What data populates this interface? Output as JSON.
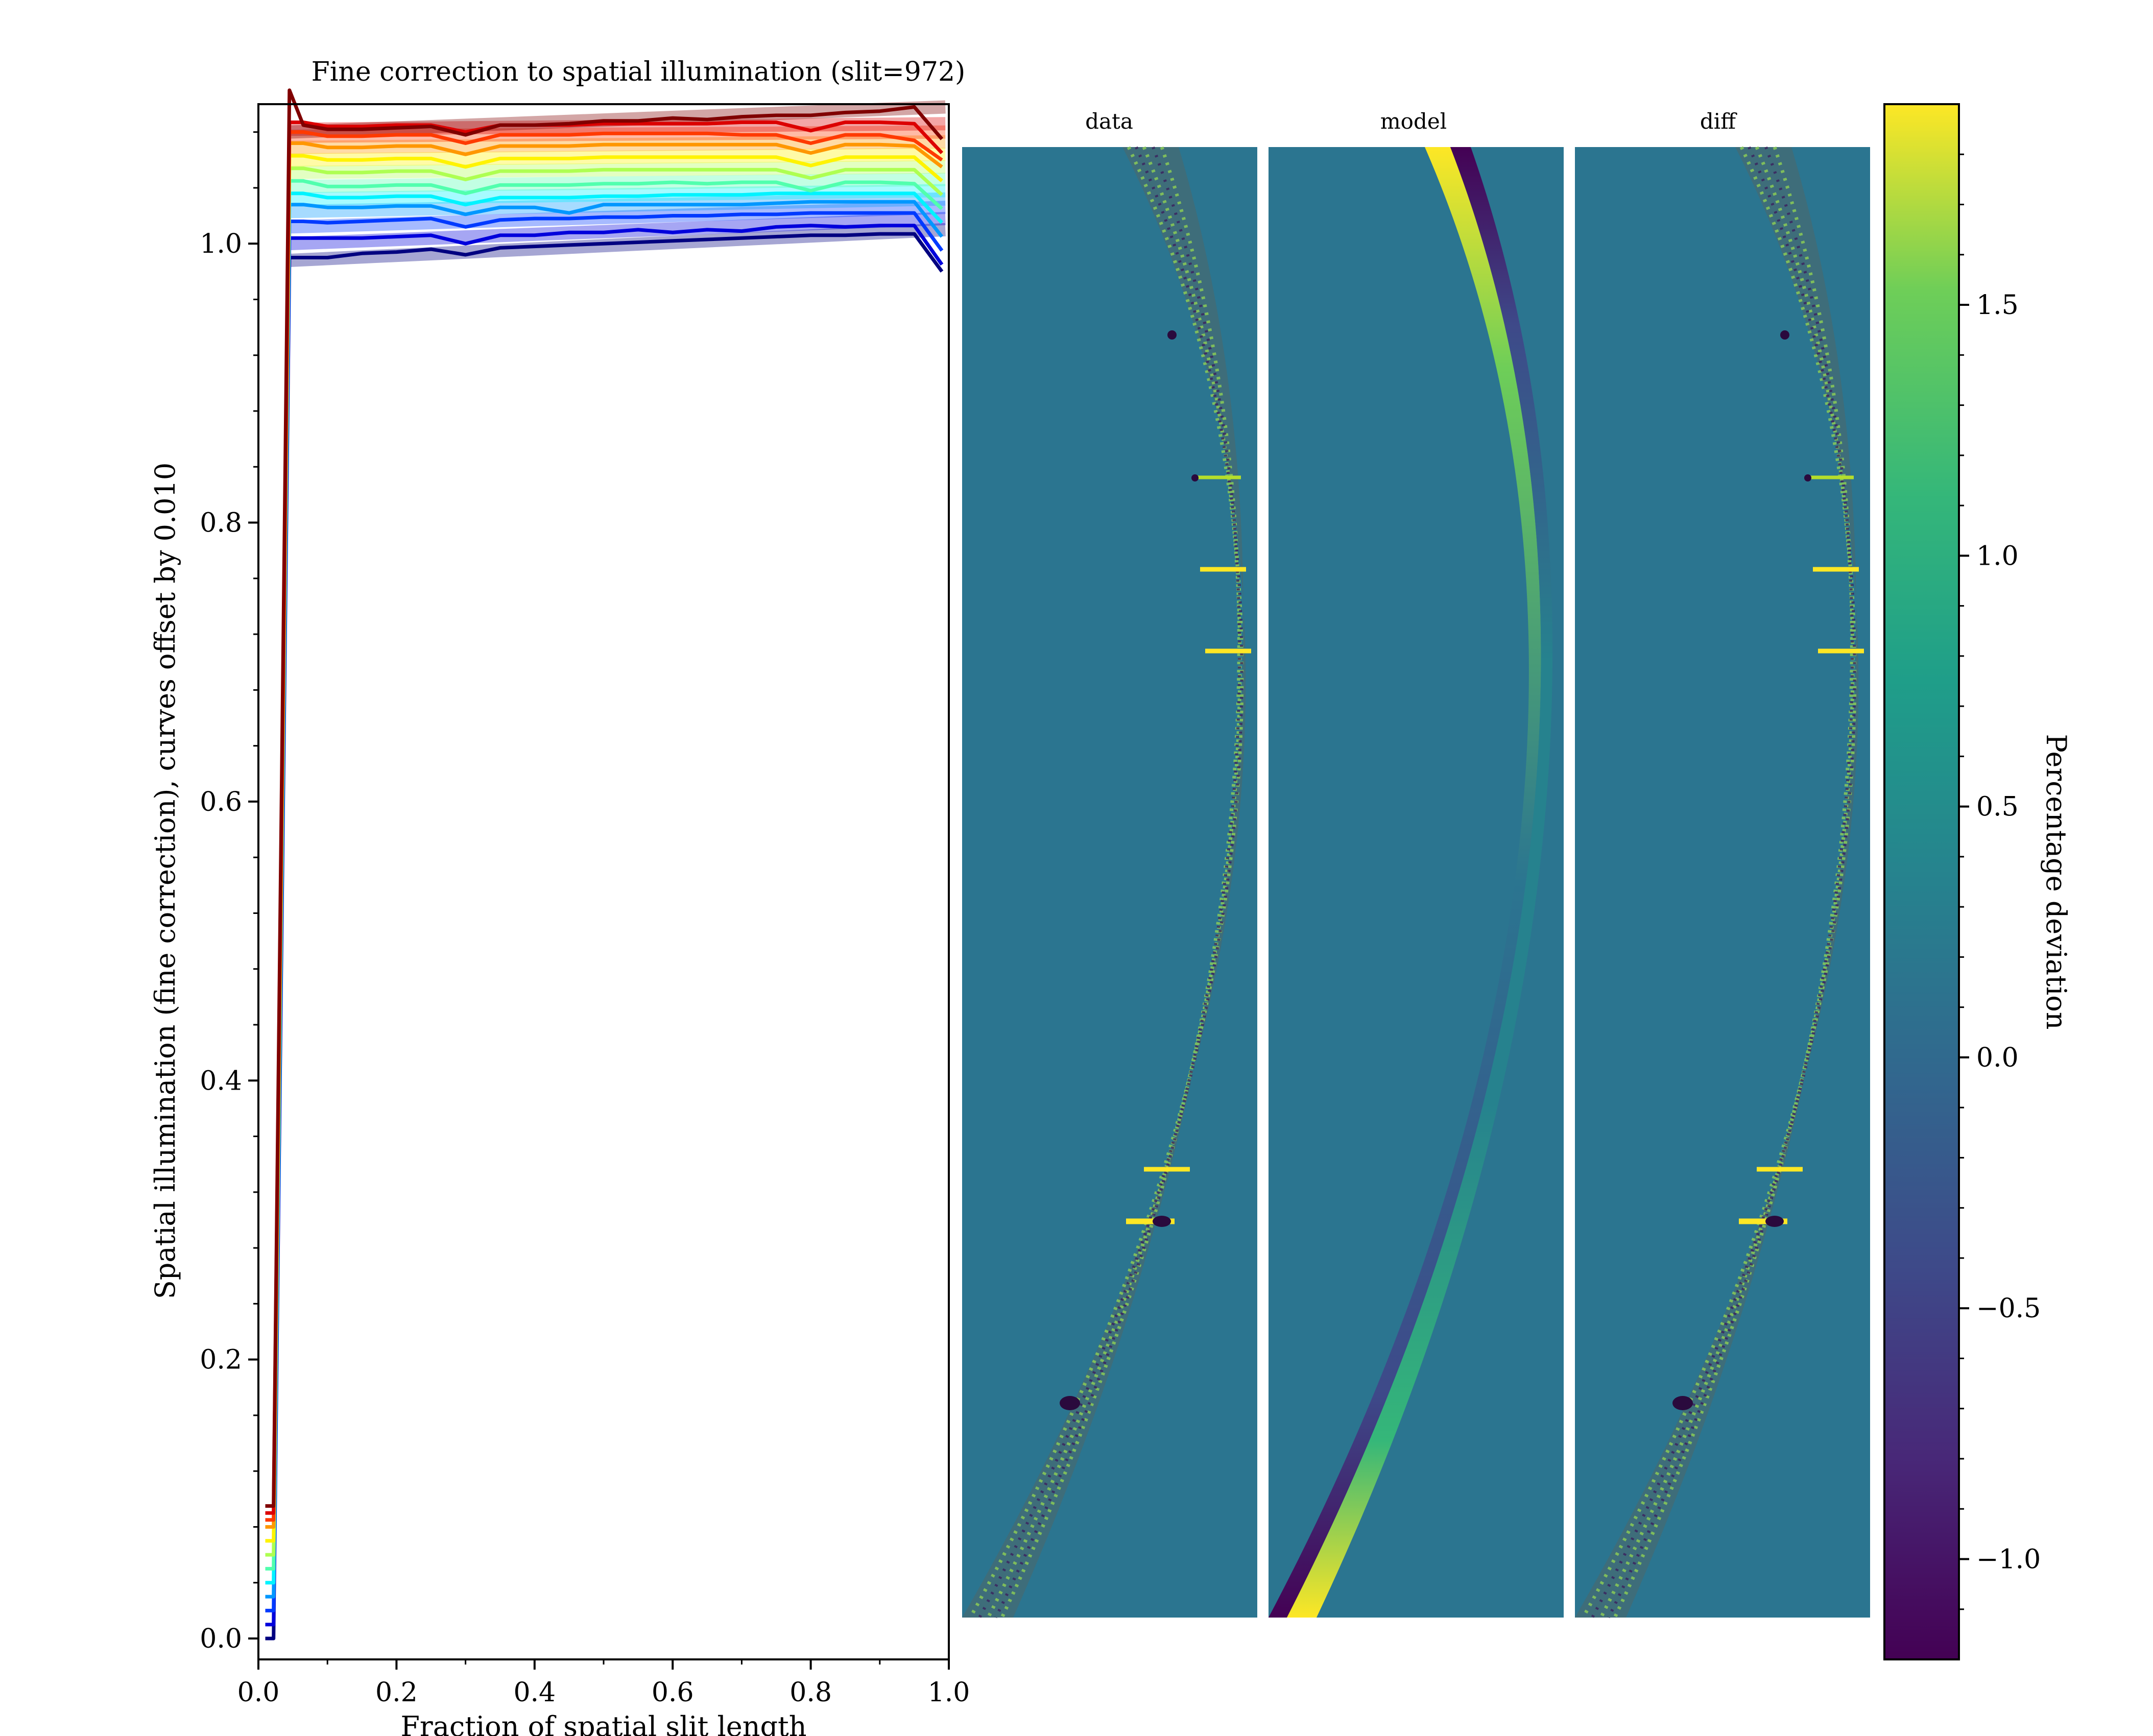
{
  "chart_data": [
    {
      "type": "line",
      "title": "Fine correction to spatial illumination (slit=972)",
      "xlabel": "Fraction of spatial slit length",
      "ylabel": "Spatial illumination (fine correction), curves offset by 0.010",
      "xlim": [
        0.0,
        1.0
      ],
      "ylim": [
        -0.015,
        1.1
      ],
      "x_ticks": [
        "0.0",
        "0.2",
        "0.4",
        "0.6",
        "0.8",
        "1.0"
      ],
      "y_ticks": [
        "0.0",
        "0.2",
        "0.4",
        "0.6",
        "0.8",
        "1.0"
      ],
      "y_tick_values": [
        0.0,
        0.2,
        0.4,
        0.6,
        0.8,
        1.0
      ],
      "grid": false,
      "colormap": "jet",
      "curve_offset": 0.01,
      "x": [
        0.01,
        0.022,
        0.045,
        0.065,
        0.1,
        0.15,
        0.2,
        0.25,
        0.3,
        0.35,
        0.4,
        0.45,
        0.5,
        0.55,
        0.6,
        0.65,
        0.7,
        0.75,
        0.8,
        0.85,
        0.9,
        0.95,
        0.99
      ],
      "series": [
        {
          "values": [
            0.0,
            0.0,
            0.99,
            0.99,
            0.99,
            0.993,
            0.994,
            0.996,
            0.992,
            0.997,
            0.998,
            0.999,
            1.0,
            1.001,
            1.002,
            1.003,
            1.004,
            1.005,
            1.006,
            1.006,
            1.007,
            1.007,
            0.98
          ]
        },
        {
          "values": [
            0.01,
            0.01,
            1.004,
            1.004,
            1.004,
            1.004,
            1.005,
            1.006,
            1.0,
            1.006,
            1.006,
            1.008,
            1.008,
            1.01,
            1.008,
            1.01,
            1.009,
            1.012,
            1.013,
            1.012,
            1.013,
            1.013,
            0.985
          ]
        },
        {
          "values": [
            0.02,
            0.02,
            1.016,
            1.016,
            1.015,
            1.016,
            1.017,
            1.018,
            1.012,
            1.017,
            1.018,
            1.018,
            1.019,
            1.019,
            1.02,
            1.02,
            1.021,
            1.021,
            1.022,
            1.022,
            1.022,
            1.022,
            0.995
          ]
        },
        {
          "values": [
            0.03,
            0.03,
            1.028,
            1.028,
            1.026,
            1.026,
            1.027,
            1.027,
            1.021,
            1.026,
            1.026,
            1.022,
            1.028,
            1.028,
            1.028,
            1.028,
            1.028,
            1.029,
            1.03,
            1.03,
            1.03,
            1.03,
            1.005
          ]
        },
        {
          "values": [
            0.04,
            0.04,
            1.036,
            1.036,
            1.033,
            1.033,
            1.034,
            1.034,
            1.028,
            1.033,
            1.033,
            1.033,
            1.034,
            1.034,
            1.035,
            1.035,
            1.035,
            1.036,
            1.036,
            1.036,
            1.036,
            1.036,
            1.015
          ]
        },
        {
          "values": [
            0.05,
            0.05,
            1.045,
            1.045,
            1.041,
            1.041,
            1.042,
            1.042,
            1.036,
            1.042,
            1.042,
            1.042,
            1.043,
            1.043,
            1.044,
            1.043,
            1.044,
            1.044,
            1.038,
            1.044,
            1.044,
            1.043,
            1.025
          ]
        },
        {
          "values": [
            0.06,
            0.06,
            1.054,
            1.054,
            1.051,
            1.051,
            1.052,
            1.052,
            1.046,
            1.052,
            1.052,
            1.052,
            1.053,
            1.053,
            1.053,
            1.053,
            1.053,
            1.053,
            1.047,
            1.053,
            1.053,
            1.053,
            1.035
          ]
        },
        {
          "values": [
            0.07,
            0.07,
            1.063,
            1.063,
            1.06,
            1.06,
            1.061,
            1.061,
            1.055,
            1.061,
            1.061,
            1.061,
            1.062,
            1.062,
            1.062,
            1.062,
            1.062,
            1.062,
            1.056,
            1.062,
            1.062,
            1.062,
            1.045
          ]
        },
        {
          "values": [
            0.08,
            0.08,
            1.072,
            1.072,
            1.069,
            1.069,
            1.07,
            1.07,
            1.064,
            1.07,
            1.07,
            1.07,
            1.071,
            1.071,
            1.071,
            1.071,
            1.071,
            1.071,
            1.065,
            1.071,
            1.071,
            1.07,
            1.055
          ]
        },
        {
          "values": [
            0.085,
            0.085,
            1.08,
            1.08,
            1.077,
            1.077,
            1.078,
            1.078,
            1.072,
            1.078,
            1.078,
            1.078,
            1.079,
            1.079,
            1.079,
            1.079,
            1.078,
            1.078,
            1.072,
            1.078,
            1.078,
            1.074,
            1.06
          ]
        },
        {
          "values": [
            0.09,
            0.09,
            1.087,
            1.087,
            1.084,
            1.084,
            1.085,
            1.085,
            1.08,
            1.085,
            1.085,
            1.085,
            1.086,
            1.086,
            1.086,
            1.086,
            1.087,
            1.087,
            1.081,
            1.087,
            1.087,
            1.086,
            1.065
          ]
        },
        {
          "values": [
            0.095,
            0.095,
            1.11,
            1.085,
            1.082,
            1.082,
            1.083,
            1.084,
            1.078,
            1.085,
            1.085,
            1.086,
            1.088,
            1.088,
            1.09,
            1.089,
            1.091,
            1.092,
            1.092,
            1.094,
            1.095,
            1.098,
            1.075
          ]
        }
      ],
      "fit_lines": [
        {
          "y0": 0.988,
          "y1": 1.01
        },
        {
          "y0": 1.0,
          "y1": 1.018
        },
        {
          "y0": 1.012,
          "y1": 1.026
        },
        {
          "y0": 1.023,
          "y1": 1.032
        },
        {
          "y0": 1.032,
          "y1": 1.038
        },
        {
          "y0": 1.041,
          "y1": 1.046
        },
        {
          "y0": 1.051,
          "y1": 1.055
        },
        {
          "y0": 1.06,
          "y1": 1.064
        },
        {
          "y0": 1.069,
          "y1": 1.073
        },
        {
          "y0": 1.077,
          "y1": 1.08
        },
        {
          "y0": 1.082,
          "y1": 1.086
        },
        {
          "y0": 1.08,
          "y1": 1.098
        }
      ]
    },
    {
      "type": "heatmap",
      "panel_titles": [
        "data",
        "model",
        "diff"
      ],
      "background_color": "#2b7590",
      "colorbar": {
        "label": "Percentage deviation",
        "vmin": -1.2,
        "vmax": 1.9,
        "ticks": [
          -1.0,
          -0.5,
          0.0,
          0.5,
          1.0,
          1.5
        ],
        "tick_labels": [
          "−1.0",
          "−0.5",
          "0.0",
          "0.5",
          "1.0",
          "1.5"
        ],
        "colormap": "viridis"
      }
    }
  ]
}
